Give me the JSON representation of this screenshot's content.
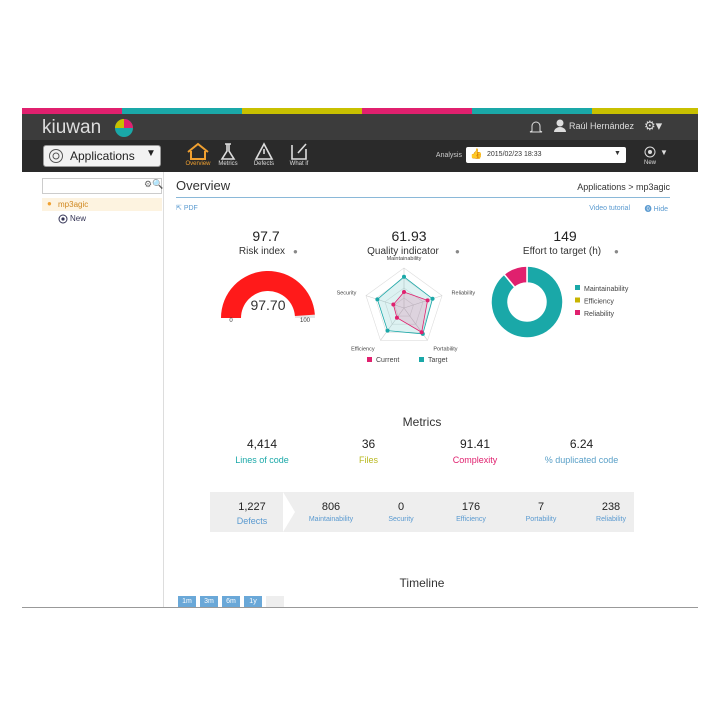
{
  "header": {
    "logo": "kiuwan",
    "user": "Raúl Hernández",
    "applications": "Applications",
    "nav": [
      "Overview",
      "Metrics",
      "Defects",
      "What if"
    ],
    "analysis_label": "Analysis",
    "analysis_value": "2015/02/23 18:33",
    "new": "New"
  },
  "sidebar": {
    "app": "mp3agic",
    "new": "New"
  },
  "overview": {
    "title": "Overview",
    "breadcrumb": "Applications > mp3agic",
    "pdf": "PDF",
    "video": "Video tutorial",
    "hide": "Hide"
  },
  "risk": {
    "value": "97.7",
    "label": "Risk index",
    "gauge": {
      "value": 97.7,
      "label": "97.70",
      "min": 0,
      "max": 100
    }
  },
  "quality": {
    "value": "61.93",
    "label": "Quality indicator",
    "axes": [
      "Maintainability",
      "Reliability",
      "Portability",
      "Efficiency",
      "Security"
    ],
    "rlim": [
      0,
      100
    ],
    "series": [
      {
        "name": "Current",
        "color": "#e0206e",
        "values": [
          40,
          62,
          75,
          30,
          28
        ]
      },
      {
        "name": "Target",
        "color": "#1aa8a8",
        "values": [
          78,
          75,
          80,
          70,
          70
        ]
      }
    ]
  },
  "effort": {
    "value": "149",
    "label": "Effort to target (h)",
    "series": [
      {
        "name": "Maintainability",
        "color": "#1aa8a8",
        "value": 89
      },
      {
        "name": "Efficiency",
        "color": "#c8b400",
        "value": 0
      },
      {
        "name": "Reliability",
        "color": "#e0206e",
        "value": 11
      }
    ]
  },
  "metrics": {
    "title": "Metrics",
    "items": [
      {
        "value": "4,414",
        "label": "Lines of code",
        "color": "#1aa8a8"
      },
      {
        "value": "36",
        "label": "Files",
        "color": "#b8b820"
      },
      {
        "value": "91.41",
        "label": "Complexity",
        "color": "#e0206e"
      },
      {
        "value": "6.24",
        "label": "% duplicated code",
        "color": "#5aa0c8"
      }
    ]
  },
  "defects": {
    "items": [
      {
        "value": "1,227",
        "label": "Defects"
      },
      {
        "value": "806",
        "label": "Maintainability"
      },
      {
        "value": "0",
        "label": "Security"
      },
      {
        "value": "176",
        "label": "Efficiency"
      },
      {
        "value": "7",
        "label": "Portability"
      },
      {
        "value": "238",
        "label": "Reliability"
      }
    ]
  },
  "timeline": {
    "title": "Timeline",
    "buttons": [
      "1m",
      "3m",
      "6m",
      "1y"
    ]
  }
}
